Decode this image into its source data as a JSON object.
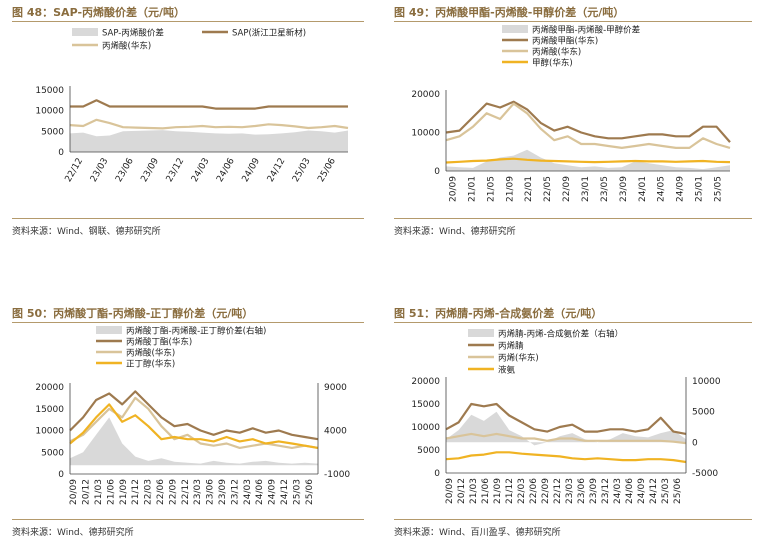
{
  "panels": [
    {
      "title": "图 48：SAP-丙烯酸价差（元/吨）",
      "source": "资料来源：Wind、钢联、德邦研究所",
      "chart_data": {
        "type": "line",
        "legend": [
          {
            "name": "SAP-丙烯酸价差",
            "kind": "area",
            "color": "#d9d9d9"
          },
          {
            "name": "SAP(浙江卫星新材)",
            "kind": "line",
            "color": "#9e7a4f"
          },
          {
            "name": "丙烯酸(华东)",
            "kind": "line",
            "color": "#d9c49a"
          }
        ],
        "left_axis": {
          "min": 0,
          "max": 15000,
          "ticks": [
            "0",
            "5000",
            "10000",
            "15000"
          ]
        },
        "x_ticks": [
          "22/12",
          "23/03",
          "23/06",
          "23/09",
          "23/12",
          "24/03",
          "24/06",
          "24/09",
          "24/12",
          "25/03",
          "25/06"
        ],
        "series": [
          {
            "name": "SAP-丙烯酸价差",
            "values": [
              4500,
              4700,
              3800,
              4000,
              5000,
              5100,
              5200,
              5300,
              5000,
              4900,
              4700,
              4500,
              4400,
              4500,
              4200,
              4300,
              4500,
              4800,
              5200,
              5000,
              4700,
              5200
            ]
          },
          {
            "name": "SAP(浙江卫星新材)",
            "values": [
              11000,
              11000,
              12500,
              11000,
              11000,
              11000,
              11000,
              11000,
              11000,
              11000,
              11000,
              10500,
              10500,
              10500,
              10500,
              11000,
              11000,
              11000,
              11000,
              11000,
              11000,
              11000
            ]
          },
          {
            "name": "丙烯酸(华东)",
            "values": [
              6500,
              6300,
              7800,
              7000,
              6000,
              5900,
              5800,
              5700,
              6000,
              6100,
              6300,
              6000,
              6100,
              6000,
              6300,
              6700,
              6500,
              6200,
              5800,
              6000,
              6300,
              5800
            ]
          }
        ]
      }
    },
    {
      "title": "图 49：丙烯酸甲酯-丙烯酸-甲醇价差（元/吨）",
      "source": "资料来源：Wind、德邦研究所",
      "chart_data": {
        "type": "line",
        "legend": [
          {
            "name": "丙烯酸甲酯-丙烯酸-甲醇价差",
            "kind": "area",
            "color": "#d9d9d9"
          },
          {
            "name": "丙烯酸甲酯(华东)",
            "kind": "line",
            "color": "#9e7a4f"
          },
          {
            "name": "丙烯酸(华东)",
            "kind": "line",
            "color": "#d9c49a"
          },
          {
            "name": "甲醇(华东)",
            "kind": "line",
            "color": "#f0b323"
          }
        ],
        "left_axis": {
          "min": 0,
          "max": 20000,
          "ticks": [
            "0",
            "10000",
            "20000"
          ]
        },
        "x_ticks": [
          "20/09",
          "21/01",
          "21/05",
          "21/09",
          "22/01",
          "22/05",
          "22/09",
          "23/01",
          "23/05",
          "23/09",
          "24/01",
          "24/05",
          "24/09",
          "25/01",
          "25/05"
        ],
        "series": [
          {
            "name": "丙烯酸甲酯-丙烯酸-甲醇价差",
            "values": [
              1200,
              1000,
              800,
              2500,
              3500,
              4000,
              5500,
              3500,
              2000,
              1500,
              1000,
              1200,
              800,
              1000,
              2500,
              2000,
              1500,
              1000,
              800,
              500,
              1000,
              1500
            ]
          },
          {
            "name": "丙烯酸甲酯(华东)",
            "values": [
              10000,
              10500,
              14000,
              17500,
              16500,
              18000,
              16000,
              12500,
              10500,
              11500,
              10000,
              9000,
              8500,
              8500,
              9000,
              9500,
              9500,
              9000,
              9000,
              11500,
              11500,
              7500
            ]
          },
          {
            "name": "丙烯酸(华东)",
            "values": [
              8000,
              9000,
              11500,
              15000,
              13500,
              17500,
              15000,
              11000,
              8000,
              9000,
              7000,
              7000,
              6500,
              6000,
              6500,
              7000,
              6500,
              6000,
              6000,
              8500,
              7000,
              6000
            ]
          },
          {
            "name": "甲醇(华东)",
            "values": [
              2200,
              2400,
              2600,
              2700,
              3000,
              3200,
              2900,
              2700,
              2600,
              2500,
              2400,
              2300,
              2400,
              2500,
              2600,
              2500,
              2500,
              2400,
              2500,
              2600,
              2400,
              2300
            ]
          }
        ]
      }
    },
    {
      "title": "图 50：丙烯酸丁酯-丙烯酸-正丁醇价差（元/吨）",
      "source": "资料来源：Wind、德邦研究所",
      "chart_data": {
        "type": "line",
        "legend": [
          {
            "name": "丙烯酸丁酯-丙烯酸-正丁醇价差(右轴)",
            "kind": "area",
            "color": "#d9d9d9"
          },
          {
            "name": "丙烯酸丁酯(华东)",
            "kind": "line",
            "color": "#9e7a4f"
          },
          {
            "name": "丙烯酸(华东)",
            "kind": "line",
            "color": "#d9c49a"
          },
          {
            "name": "正丁醇(华东)",
            "kind": "line",
            "color": "#f0b323"
          }
        ],
        "left_axis": {
          "min": 0,
          "max": 20000,
          "ticks": [
            "0",
            "5000",
            "10000",
            "15000",
            "20000"
          ]
        },
        "right_axis": {
          "min": -1000,
          "max": 9000,
          "ticks": [
            "-1000",
            "4000",
            "9000"
          ]
        },
        "x_ticks": [
          "20/09",
          "20/12",
          "21/03",
          "21/06",
          "21/09",
          "21/12",
          "22/03",
          "22/06",
          "22/09",
          "22/12",
          "23/03",
          "23/06",
          "23/09",
          "23/12",
          "24/03",
          "24/06",
          "24/09",
          "24/12",
          "25/03",
          "25/06"
        ],
        "series": [
          {
            "name": "丙烯酸丁酯-丙烯酸-正丁醇价差(右轴)",
            "axis": "right",
            "values": [
              800,
              1500,
              3500,
              5500,
              2500,
              1000,
              500,
              800,
              400,
              300,
              200,
              500,
              300,
              200,
              400,
              500,
              300,
              200,
              300,
              200
            ]
          },
          {
            "name": "丙烯酸丁酯(华东)",
            "values": [
              10000,
              13000,
              17000,
              18500,
              16000,
              19000,
              16000,
              13000,
              11000,
              11500,
              10000,
              9000,
              10000,
              9500,
              10500,
              9500,
              10000,
              9000,
              8500,
              8000
            ]
          },
          {
            "name": "丙烯酸(华东)",
            "values": [
              7500,
              9000,
              12000,
              15000,
              13000,
              17500,
              15000,
              11000,
              8000,
              9000,
              7000,
              6500,
              7000,
              6000,
              6500,
              7000,
              6500,
              6000,
              6500,
              6000
            ]
          },
          {
            "name": "正丁醇(华东)",
            "values": [
              7000,
              9500,
              13000,
              16000,
              12000,
              13500,
              11000,
              8000,
              8500,
              8000,
              8000,
              7500,
              8500,
              7500,
              8000,
              7000,
              7500,
              7000,
              6500,
              6000
            ]
          }
        ]
      }
    },
    {
      "title": "图 51：丙烯腈-丙烯-合成氨价差（元/吨）",
      "source": "资料来源：Wind、百川盈孚、德邦研究所",
      "chart_data": {
        "type": "line",
        "legend": [
          {
            "name": "丙烯腈-丙烯-合成氨价差（右轴）",
            "kind": "area",
            "color": "#d9d9d9"
          },
          {
            "name": "丙烯腈",
            "kind": "line",
            "color": "#9e7a4f"
          },
          {
            "name": "丙烯(华东)",
            "kind": "line",
            "color": "#d9c49a"
          },
          {
            "name": "液氨",
            "kind": "line",
            "color": "#f0b323"
          }
        ],
        "left_axis": {
          "min": 0,
          "max": 20000,
          "ticks": [
            "0",
            "5000",
            "10000",
            "15000",
            "20000"
          ]
        },
        "right_axis": {
          "min": -5000,
          "max": 10000,
          "ticks": [
            "-5000",
            "0",
            "5000",
            "10000"
          ]
        },
        "x_ticks": [
          "20/09",
          "20/12",
          "21/03",
          "21/06",
          "21/09",
          "21/12",
          "22/03",
          "22/06",
          "22/09",
          "22/12",
          "23/03",
          "23/06",
          "23/09",
          "23/12",
          "24/03",
          "24/06",
          "24/09",
          "24/12",
          "25/03",
          "25/06"
        ],
        "series": [
          {
            "name": "丙烯腈-丙烯-合成氨价差（右轴）",
            "axis": "right",
            "values": [
              500,
              2000,
              4500,
              3500,
              5000,
              2000,
              1000,
              -500,
              0,
              1000,
              1500,
              500,
              0,
              500,
              1500,
              1000,
              800,
              1500,
              2000,
              500
            ]
          },
          {
            "name": "丙烯腈",
            "values": [
              9500,
              11000,
              15000,
              14500,
              15000,
              12500,
              11000,
              9500,
              9000,
              10000,
              10500,
              9000,
              9000,
              9500,
              9500,
              9000,
              9500,
              12000,
              9000,
              8500
            ]
          },
          {
            "name": "丙烯(华东)",
            "values": [
              7500,
              8000,
              8500,
              8000,
              8500,
              8000,
              7500,
              7500,
              7000,
              7500,
              7500,
              7000,
              7000,
              7000,
              7000,
              7000,
              7000,
              7000,
              6800,
              6500
            ]
          },
          {
            "name": "液氨",
            "values": [
              3000,
              3200,
              3800,
              4000,
              4500,
              4500,
              4200,
              4000,
              3800,
              3600,
              3200,
              3000,
              3200,
              3000,
              2800,
              2800,
              3000,
              3000,
              2800,
              2400
            ]
          }
        ]
      }
    }
  ]
}
